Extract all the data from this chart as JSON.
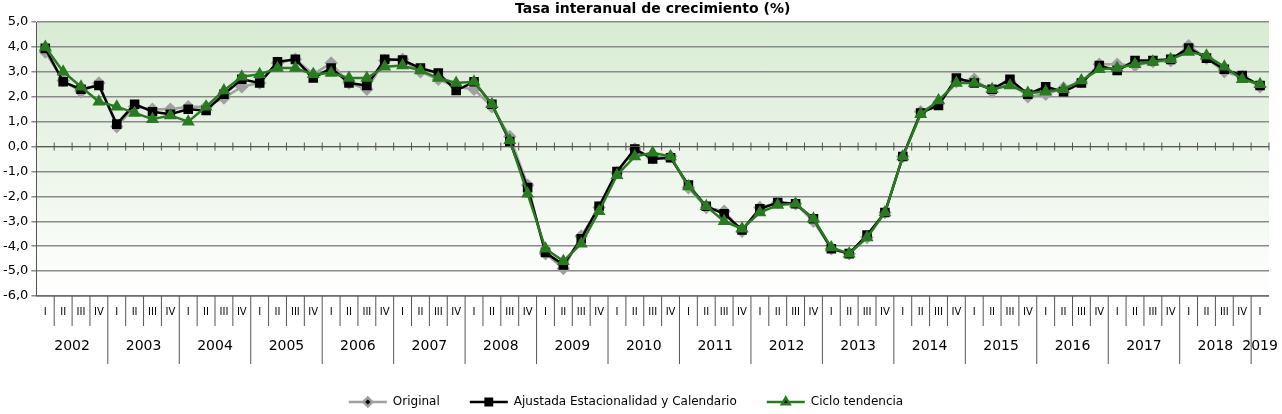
{
  "chart_data": {
    "type": "line",
    "title": "Tasa interanual de crecimiento (%)",
    "categories": [
      "I",
      "II",
      "III",
      "IV",
      "I",
      "II",
      "III",
      "IV",
      "I",
      "II",
      "III",
      "IV",
      "I",
      "II",
      "III",
      "IV",
      "I",
      "II",
      "III",
      "IV",
      "I",
      "II",
      "III",
      "IV",
      "I",
      "II",
      "III",
      "IV",
      "I",
      "II",
      "III",
      "IV",
      "I",
      "II",
      "III",
      "IV",
      "I",
      "II",
      "III",
      "IV",
      "I",
      "II",
      "III",
      "IV",
      "I",
      "II",
      "III",
      "IV",
      "I",
      "II",
      "III",
      "IV",
      "I",
      "II",
      "III",
      "IV",
      "I",
      "II",
      "III",
      "IV",
      "I",
      "II",
      "III",
      "IV",
      "I",
      "II",
      "III",
      "IV",
      "I"
    ],
    "annotations": [
      "2002",
      "2003",
      "2004",
      "2005",
      "2006",
      "2007",
      "2008",
      "2009",
      "2010",
      "2011",
      "2012",
      "2013",
      "2014",
      "2015",
      "2016",
      "2017",
      "2018",
      "2019"
    ],
    "series": [
      {
        "name": "Original",
        "color": "#a0a0a0",
        "marker": "diamond",
        "values": [
          3.8,
          2.65,
          2.2,
          2.55,
          0.8,
          1.6,
          1.5,
          1.5,
          1.6,
          1.6,
          1.95,
          2.4,
          2.55,
          3.35,
          3.5,
          2.9,
          3.35,
          2.55,
          2.3,
          3.45,
          3.5,
          3.0,
          2.7,
          2.4,
          2.3,
          1.6,
          0.4,
          -1.55,
          -4.3,
          -4.9,
          -3.6,
          -2.45,
          -1.05,
          -0.1,
          -0.45,
          -0.4,
          -1.65,
          -2.45,
          -2.6,
          -3.4,
          -2.45,
          -2.25,
          -2.3,
          -3.0,
          -4.1,
          -4.3,
          -3.65,
          -2.65,
          -0.4,
          1.4,
          1.75,
          2.6,
          2.7,
          2.2,
          2.6,
          2.0,
          2.1,
          2.35,
          2.6,
          3.3,
          3.3,
          3.25,
          3.4,
          3.45,
          4.05,
          3.55,
          3.0,
          2.8,
          2.4
        ]
      },
      {
        "name": "Ajustada Estacionalidad y Calendario",
        "color": "#000000",
        "marker": "square",
        "values": [
          3.94,
          2.6,
          2.3,
          2.45,
          0.9,
          1.7,
          1.4,
          1.3,
          1.5,
          1.45,
          2.1,
          2.7,
          2.55,
          3.4,
          3.5,
          2.75,
          3.15,
          2.55,
          2.45,
          3.5,
          3.47,
          3.15,
          2.95,
          2.25,
          2.6,
          1.7,
          0.2,
          -1.65,
          -4.25,
          -4.75,
          -3.7,
          -2.4,
          -1.0,
          -0.1,
          -0.5,
          -0.45,
          -1.55,
          -2.4,
          -2.7,
          -3.35,
          -2.5,
          -2.25,
          -2.3,
          -2.9,
          -4.1,
          -4.3,
          -3.55,
          -2.65,
          -0.4,
          1.35,
          1.65,
          2.75,
          2.55,
          2.3,
          2.7,
          2.1,
          2.4,
          2.2,
          2.55,
          3.25,
          3.05,
          3.45,
          3.45,
          3.5,
          3.95,
          3.55,
          3.1,
          2.85,
          2.45
        ]
      },
      {
        "name": "Ciclo tendencia",
        "color": "#2a7a22",
        "marker": "triangle",
        "values": [
          4.0,
          3.0,
          2.4,
          1.8,
          1.6,
          1.35,
          1.1,
          1.25,
          1.0,
          1.6,
          2.25,
          2.8,
          2.9,
          3.15,
          3.15,
          2.9,
          2.95,
          2.75,
          2.75,
          3.2,
          3.25,
          3.05,
          2.75,
          2.55,
          2.6,
          1.7,
          0.25,
          -1.9,
          -4.1,
          -4.6,
          -3.9,
          -2.6,
          -1.15,
          -0.4,
          -0.25,
          -0.4,
          -1.6,
          -2.4,
          -3.0,
          -3.3,
          -2.65,
          -2.35,
          -2.3,
          -2.9,
          -4.05,
          -4.3,
          -3.65,
          -2.65,
          -0.4,
          1.3,
          1.85,
          2.55,
          2.55,
          2.3,
          2.45,
          2.15,
          2.2,
          2.3,
          2.65,
          3.1,
          3.15,
          3.3,
          3.4,
          3.5,
          3.8,
          3.65,
          3.2,
          2.7,
          2.5
        ]
      }
    ],
    "ylim": [
      -6,
      5
    ],
    "yticks": [
      {
        "value": -6,
        "label": "-6,0"
      },
      {
        "value": -5,
        "label": "-5,0"
      },
      {
        "value": -4,
        "label": "-4,0"
      },
      {
        "value": -3,
        "label": "-3,0"
      },
      {
        "value": -2,
        "label": "-2,0"
      },
      {
        "value": -1,
        "label": "-1,0"
      },
      {
        "value": 0,
        "label": "0,0"
      },
      {
        "value": 1,
        "label": "1,0"
      },
      {
        "value": 2,
        "label": "2,0"
      },
      {
        "value": 3,
        "label": "3,0"
      },
      {
        "value": 4,
        "label": "4,0"
      },
      {
        "value": 5,
        "label": "5,0"
      }
    ],
    "grid": "y",
    "legend": "bottom",
    "line_style": "solid"
  }
}
